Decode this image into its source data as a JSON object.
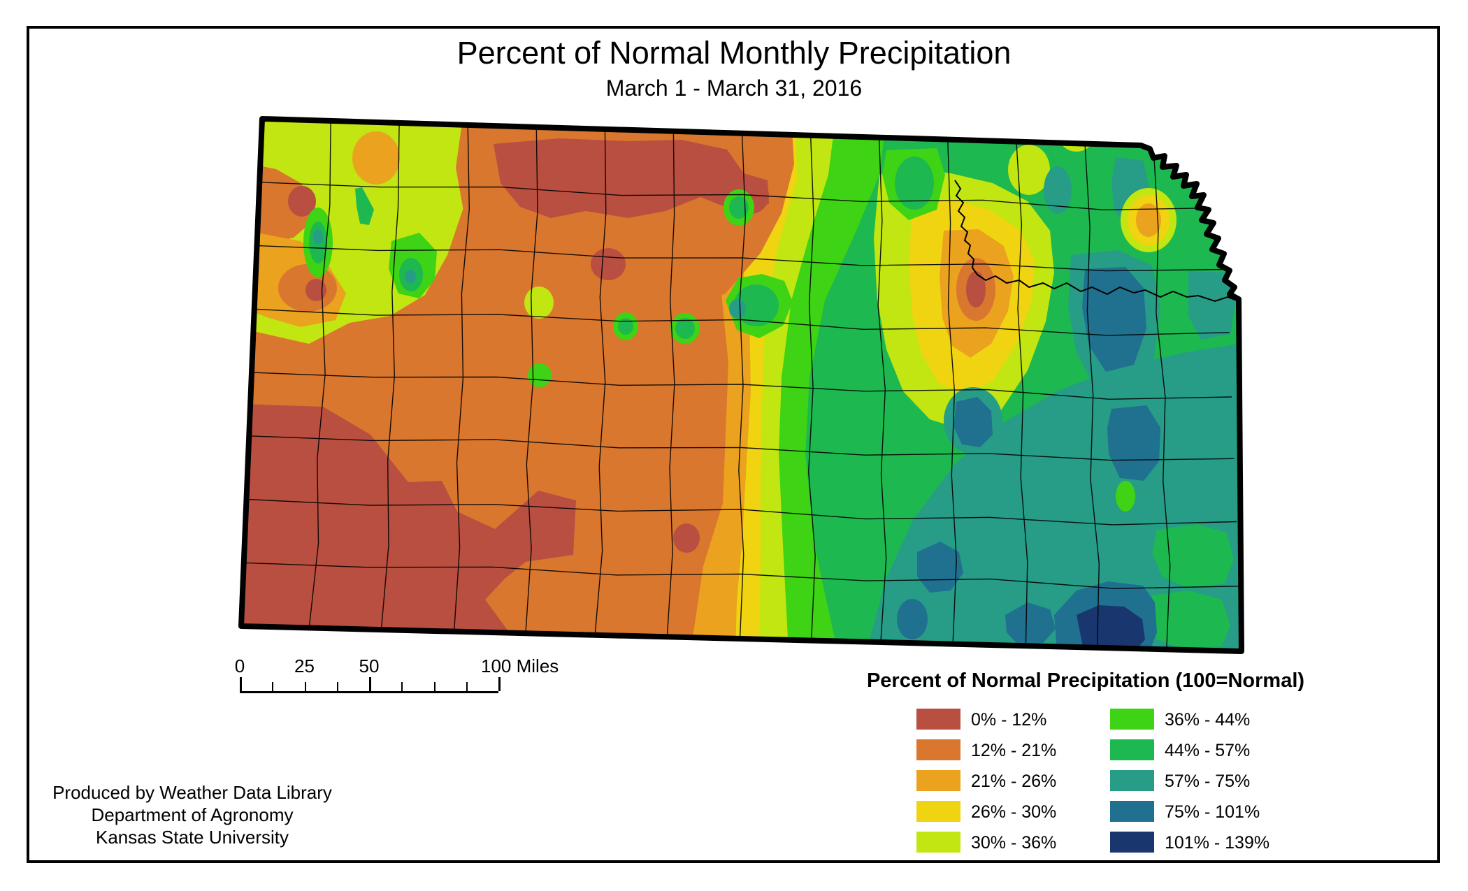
{
  "header": {
    "title": "Percent of Normal Monthly Precipitation",
    "subtitle": "March 1 - March 31, 2016"
  },
  "legend": {
    "title": "Percent of Normal Precipitation (100=Normal)",
    "items": [
      {
        "label": "0% - 12%",
        "color": "#B94F40",
        "column": 0,
        "row": 0
      },
      {
        "label": "12% - 21%",
        "color": "#D9772F",
        "column": 0,
        "row": 1
      },
      {
        "label": "21% - 26%",
        "color": "#EBA21E",
        "column": 0,
        "row": 2
      },
      {
        "label": "26% - 30%",
        "color": "#F0D411",
        "column": 0,
        "row": 3
      },
      {
        "label": "30% - 36%",
        "color": "#C2E611",
        "column": 0,
        "row": 4
      },
      {
        "label": "36% - 44%",
        "color": "#3ED314",
        "column": 1,
        "row": 0
      },
      {
        "label": "44% - 57%",
        "color": "#1EB851",
        "column": 1,
        "row": 1
      },
      {
        "label": "57% - 75%",
        "color": "#279C87",
        "column": 1,
        "row": 2
      },
      {
        "label": "75% - 101%",
        "color": "#20708F",
        "column": 1,
        "row": 3
      },
      {
        "label": "101% - 139%",
        "color": "#1A366F",
        "column": 1,
        "row": 4
      }
    ]
  },
  "scale_bar": {
    "unit": "Miles",
    "labels": [
      {
        "text": "0",
        "mile": 0
      },
      {
        "text": "25",
        "mile": 25
      },
      {
        "text": "50",
        "mile": 50
      },
      {
        "text": "100 Miles",
        "mile": 100
      }
    ],
    "major_ticks_miles": [
      0,
      50,
      100
    ],
    "minor_ticks_miles": [
      12.5,
      25,
      37.5,
      62.5,
      75,
      87.5
    ],
    "span_miles": 100
  },
  "credits": {
    "lines": [
      "Produced by Weather Data Library",
      "Department of Agronomy",
      "Kansas State University"
    ]
  }
}
